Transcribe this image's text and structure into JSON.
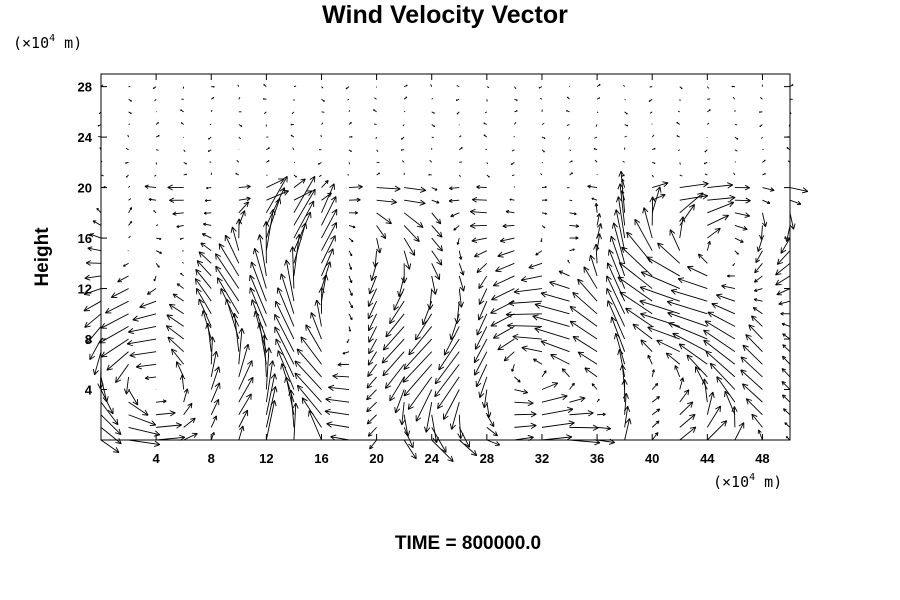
{
  "chart_data": {
    "type": "vector",
    "title": "Wind Velocity Vector",
    "ylabel": "Height",
    "xlabel": "",
    "x_unit": {
      "prefix": "(×10",
      "exponent": "4",
      "suffix": " m)"
    },
    "y_unit": {
      "prefix": "(×10",
      "exponent": "4",
      "suffix": " m)"
    },
    "xlim": [
      0,
      50
    ],
    "ylim": [
      0,
      29
    ],
    "x_ticks": [
      4,
      8,
      12,
      16,
      20,
      24,
      28,
      32,
      36,
      40,
      44,
      48
    ],
    "y_ticks": [
      4,
      8,
      12,
      16,
      20,
      24,
      28
    ],
    "x_tick_labels": [
      "4",
      "8",
      "12",
      "16",
      "20",
      "24",
      "28",
      "32",
      "36",
      "40",
      "44",
      "48"
    ],
    "y_tick_labels": [
      "4",
      "8",
      "12",
      "16",
      "20",
      "24",
      "28"
    ],
    "grid": false,
    "vector_grid": {
      "x_start": 0,
      "x_step": 2,
      "x_count": 26,
      "y_start": 0,
      "y_step": 1,
      "y_count": 29
    },
    "flow_layer_top": 20,
    "vortex_centers": [
      {
        "x": 5,
        "y": 5,
        "rotation": "ccw"
      },
      {
        "x": 18,
        "y": 11,
        "rotation": "cw"
      },
      {
        "x": 29,
        "y": 5,
        "rotation": "ccw"
      },
      {
        "x": 41,
        "y": 4,
        "rotation": "ccw"
      },
      {
        "x": 46,
        "y": 14,
        "rotation": "cw"
      }
    ],
    "updraft_x": [
      12,
      15,
      38
    ]
  },
  "time_label": "TIME = 800000.0",
  "colors": {
    "arrow": "#000000",
    "axis": "#000000",
    "background": "#ffffff"
  }
}
